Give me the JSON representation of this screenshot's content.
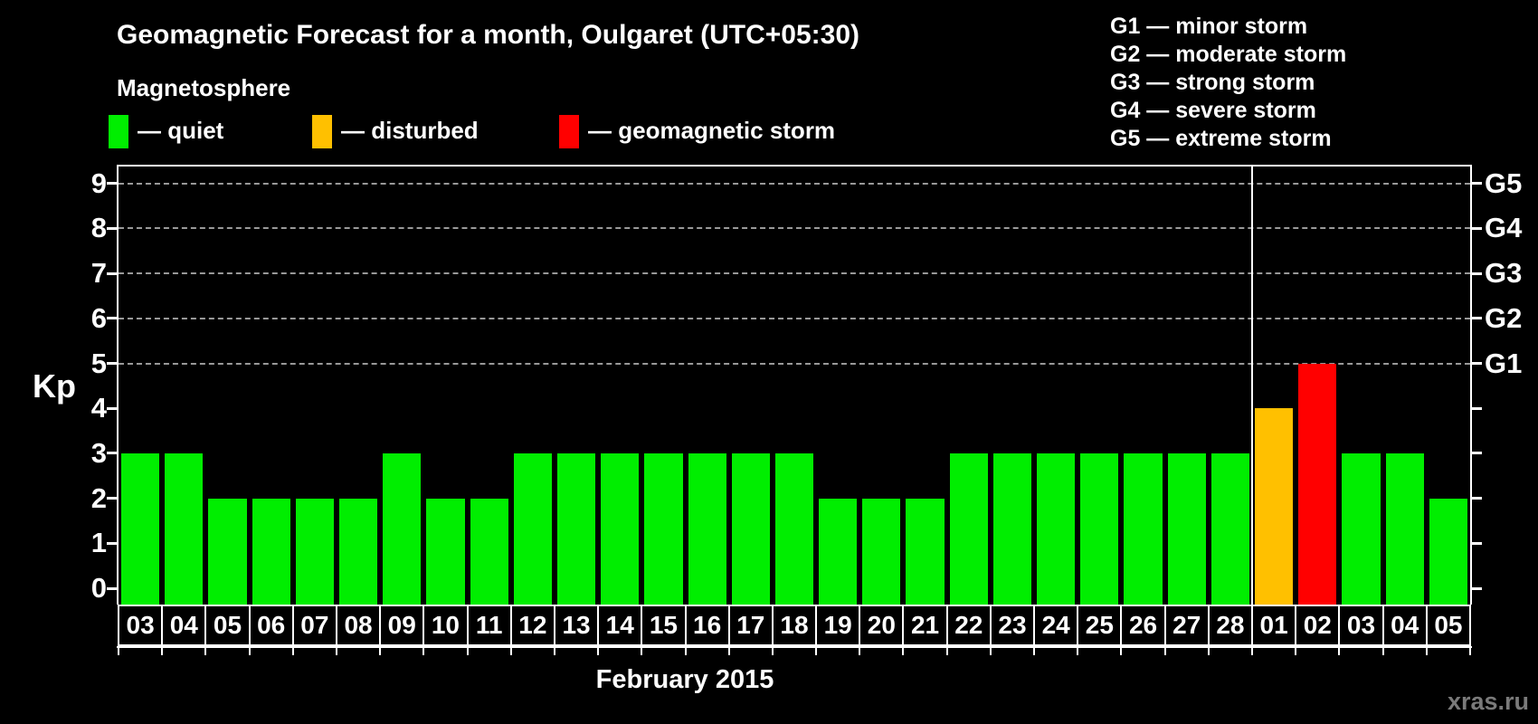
{
  "title": "Geomagnetic Forecast for a month, Oulgaret (UTC+05:30)",
  "legend": {
    "heading": "Magnetosphere",
    "items": [
      {
        "name": "quiet",
        "label": "— quiet",
        "color": "#00EE00"
      },
      {
        "name": "disturbed",
        "label": "— disturbed",
        "color": "#FFC000"
      },
      {
        "name": "storm",
        "label": "— geomagnetic storm",
        "color": "#FF0000"
      }
    ]
  },
  "g_scale_legend": [
    "G1 — minor storm",
    "G2 — moderate storm",
    "G3 — strong storm",
    "G4 — severe storm",
    "G5 — extreme storm"
  ],
  "y_axis": {
    "label": "Kp",
    "ticks": [
      "0",
      "1",
      "2",
      "3",
      "4",
      "5",
      "6",
      "7",
      "8",
      "9"
    ]
  },
  "right_axis": {
    "labels": [
      {
        "text": "G1",
        "kp": 5
      },
      {
        "text": "G2",
        "kp": 6
      },
      {
        "text": "G3",
        "kp": 7
      },
      {
        "text": "G4",
        "kp": 8
      },
      {
        "text": "G5",
        "kp": 9
      }
    ]
  },
  "x_axis_label": "February 2015",
  "watermark": "xras.ru",
  "chart_data": {
    "type": "bar",
    "title": "Geomagnetic Forecast for a month, Oulgaret (UTC+05:30)",
    "xlabel": "February 2015",
    "ylabel": "Kp",
    "ylim": [
      0,
      9.4
    ],
    "grid_dashed_at_kp": [
      5,
      6,
      7,
      8,
      9
    ],
    "month_separator_after_index": 25,
    "categories": [
      "03",
      "04",
      "05",
      "06",
      "07",
      "08",
      "09",
      "10",
      "11",
      "12",
      "13",
      "14",
      "15",
      "16",
      "17",
      "18",
      "19",
      "20",
      "21",
      "22",
      "23",
      "24",
      "25",
      "26",
      "27",
      "28",
      "01",
      "02",
      "03",
      "04",
      "05"
    ],
    "values": [
      3,
      3,
      2,
      2,
      2,
      2,
      3,
      2,
      2,
      3,
      3,
      3,
      3,
      3,
      3,
      3,
      2,
      2,
      2,
      3,
      3,
      3,
      3,
      3,
      3,
      3,
      4,
      5,
      3,
      3,
      2
    ],
    "levels": [
      "quiet",
      "quiet",
      "quiet",
      "quiet",
      "quiet",
      "quiet",
      "quiet",
      "quiet",
      "quiet",
      "quiet",
      "quiet",
      "quiet",
      "quiet",
      "quiet",
      "quiet",
      "quiet",
      "quiet",
      "quiet",
      "quiet",
      "quiet",
      "quiet",
      "quiet",
      "quiet",
      "quiet",
      "quiet",
      "quiet",
      "disturbed",
      "storm",
      "quiet",
      "quiet",
      "quiet"
    ],
    "bar_colors": {
      "quiet": "#00EE00",
      "disturbed": "#FFC000",
      "storm": "#FF0000"
    }
  }
}
